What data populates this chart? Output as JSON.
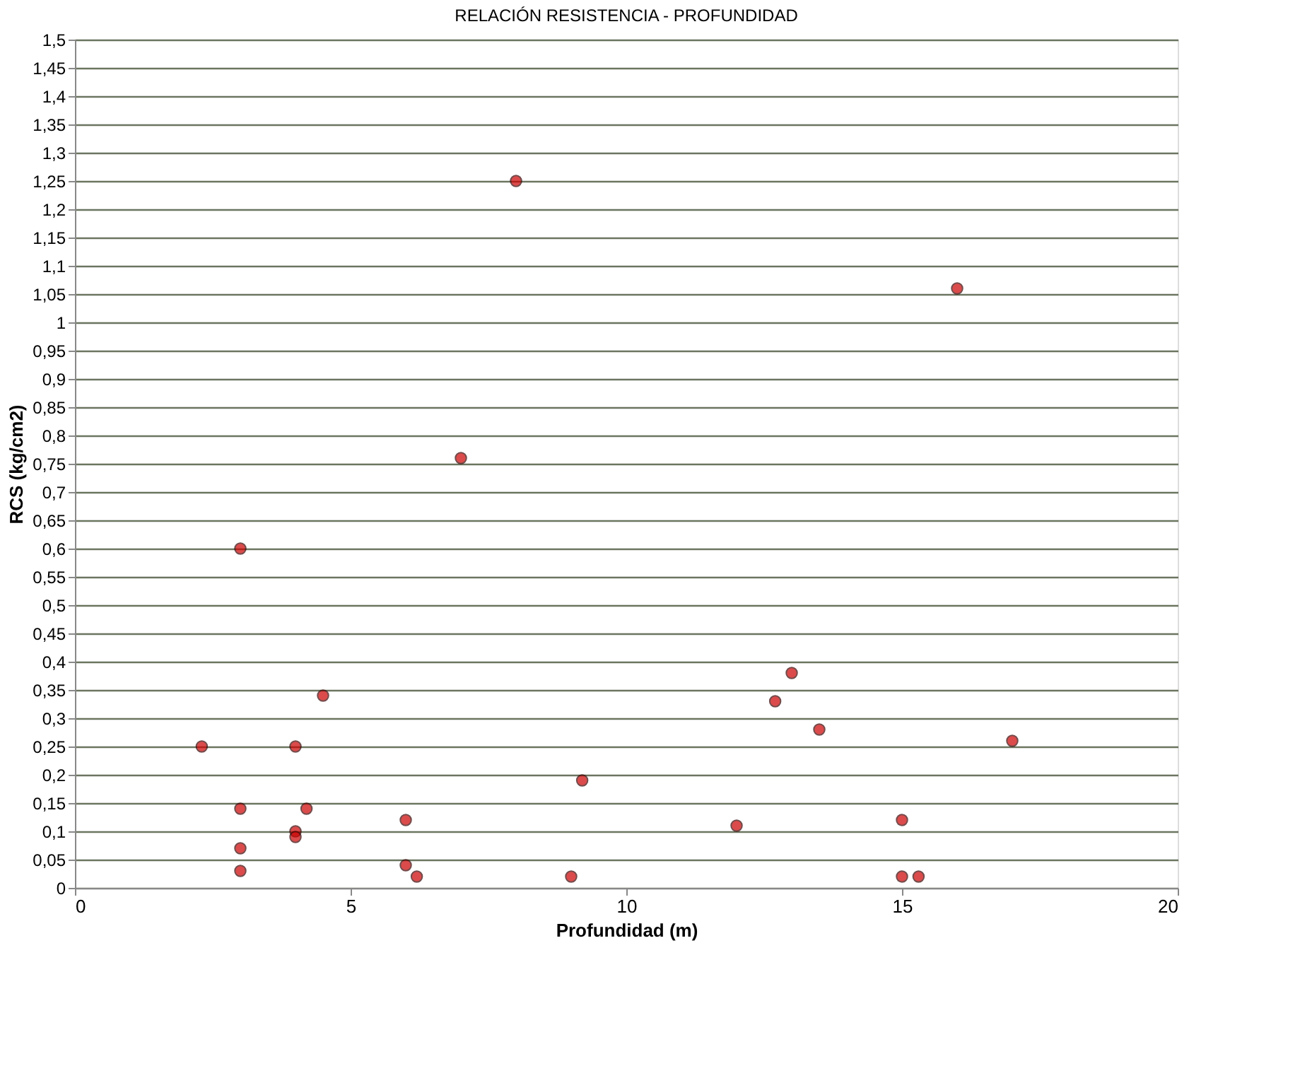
{
  "chart_data": {
    "type": "scatter",
    "title": "RELACIÓN RESISTENCIA - PROFUNDIDAD",
    "xlabel": "Profundidad (m)",
    "ylabel": "RCS (kg/cm2)",
    "x": [
      8,
      16,
      7,
      3,
      4.5,
      2.3,
      4,
      3,
      4.2,
      6,
      4,
      4,
      3,
      3,
      6,
      6.2,
      9,
      13,
      12.7,
      13.5,
      17,
      9.2,
      12,
      15,
      15,
      15.3
    ],
    "series": [
      {
        "color": "#cc0000",
        "values": [
          1.25,
          1.06,
          0.76,
          0.6,
          0.34,
          0.25,
          0.25,
          0.14,
          0.14,
          0.12,
          0.1,
          0.09,
          0.07,
          0.03,
          0.04,
          0.02,
          0.02,
          0.38,
          0.33,
          0.28,
          0.26,
          0.19,
          0.11,
          0.12,
          0.02,
          0.02
        ]
      }
    ],
    "xlim": [
      0,
      20
    ],
    "xticks": [
      0,
      5,
      10,
      15,
      20
    ],
    "ylim": [
      0,
      1.5
    ],
    "yticks": [
      0,
      {
        "value": 0.05,
        "label": "0,05"
      },
      {
        "value": 0.1,
        "label": "0,1"
      },
      {
        "value": 0.15,
        "label": "0,15"
      },
      {
        "value": 0.2,
        "label": "0,2"
      },
      {
        "value": 0.25,
        "label": "0,25"
      },
      {
        "value": 0.3,
        "label": "0,3"
      },
      {
        "value": 0.35,
        "label": "0,35"
      },
      {
        "value": 0.4,
        "label": "0,4"
      },
      {
        "value": 0.45,
        "label": "0,45"
      },
      {
        "value": 0.5,
        "label": "0,5"
      },
      {
        "value": 0.55,
        "label": "0,55"
      },
      {
        "value": 0.6,
        "label": "0,6"
      },
      {
        "value": 0.65,
        "label": "0,65"
      },
      {
        "value": 0.7,
        "label": "0,7"
      },
      {
        "value": 0.75,
        "label": "0,75"
      },
      {
        "value": 0.8,
        "label": "0,8"
      },
      {
        "value": 0.85,
        "label": "0,85"
      },
      {
        "value": 0.9,
        "label": "0,9"
      },
      {
        "value": 0.95,
        "label": "0,95"
      },
      1,
      {
        "value": 1.05,
        "label": "1,05"
      },
      {
        "value": 1.1,
        "label": "1,1"
      },
      {
        "value": 1.15,
        "label": "1,15"
      },
      {
        "value": 1.2,
        "label": "1,2"
      },
      {
        "value": 1.25,
        "label": "1,25"
      },
      {
        "value": 1.3,
        "label": "1,3"
      },
      {
        "value": 1.35,
        "label": "1,35"
      },
      {
        "value": 1.4,
        "label": "1,4"
      },
      {
        "value": 1.45,
        "label": "1,45"
      },
      {
        "value": 1.5,
        "label": "1,5"
      }
    ],
    "grid": "y",
    "marker": "circle",
    "legend": false
  }
}
